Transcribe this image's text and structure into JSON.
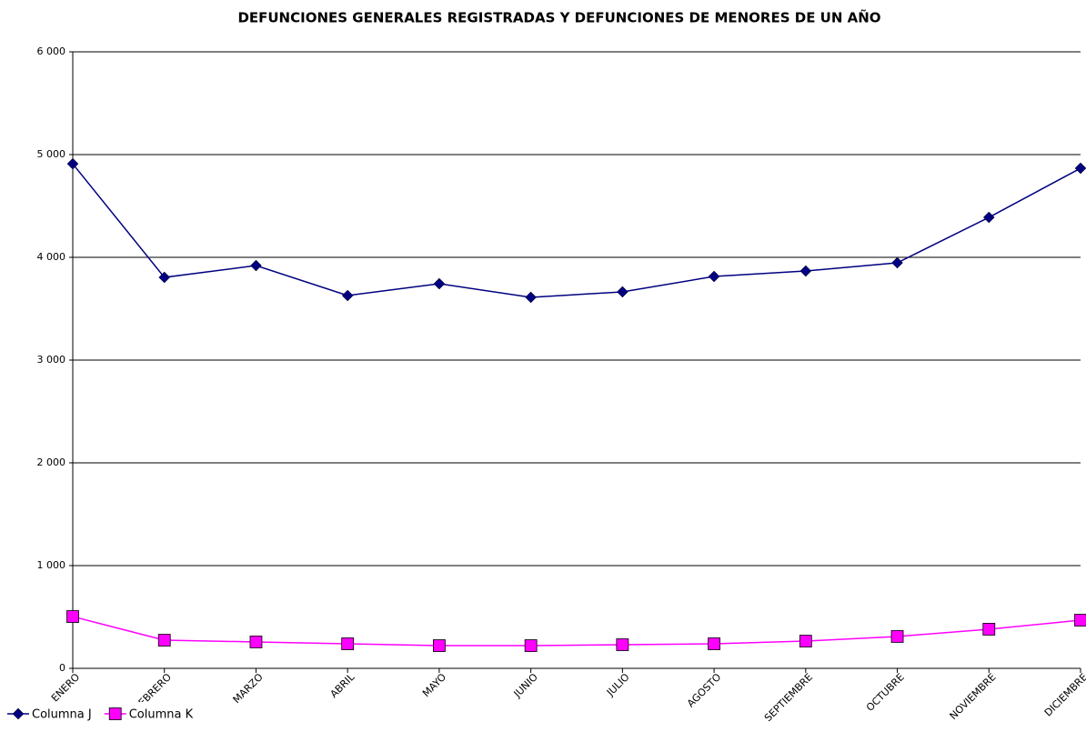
{
  "chart_data": {
    "type": "line",
    "title": "DEFUNCIONES GENERALES REGISTRADAS Y DEFUNCIONES DE MENORES DE UN AÑO",
    "categories": [
      "ENERO",
      "FEBRERO",
      "MARZO",
      "ABRIL",
      "MAYO",
      "JUNIO",
      "JULIO",
      "AGOSTO",
      "SEPTIEMBRE",
      "OCTUBRE",
      "NOVIEMBRE",
      "DICIEMBRE"
    ],
    "series": [
      {
        "name": "Columna J",
        "color": "#000080",
        "marker": "diamond",
        "values": [
          4910,
          3805,
          3920,
          3628,
          3743,
          3611,
          3664,
          3814,
          3867,
          3947,
          4389,
          4867
        ]
      },
      {
        "name": "Columna K",
        "color": "#ff00ff",
        "marker": "square",
        "values": [
          504,
          274,
          257,
          239,
          221,
          221,
          230,
          239,
          265,
          310,
          381,
          469
        ]
      }
    ],
    "ylim": [
      0,
      6000
    ],
    "yticks": [
      0,
      {
        "value": 1000,
        "label": "1 000"
      },
      {
        "value": 2000,
        "label": "2 000"
      },
      {
        "value": 3000,
        "label": "3 000"
      },
      {
        "value": 4000,
        "label": "4 000"
      },
      {
        "value": 5000,
        "label": "5 000"
      },
      {
        "value": 6000,
        "label": "6 000"
      }
    ],
    "grid": true,
    "legend": "bottom-left"
  }
}
